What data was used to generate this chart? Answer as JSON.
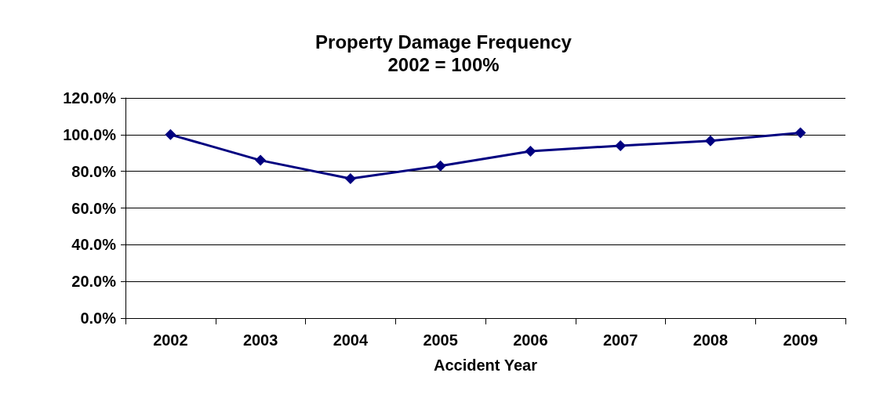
{
  "chart_data": {
    "type": "line",
    "title": "Property Damage Frequency\n2002 = 100%",
    "xlabel": "Accident Year",
    "categories": [
      "2002",
      "2003",
      "2004",
      "2005",
      "2006",
      "2007",
      "2008",
      "2009"
    ],
    "series": [
      {
        "color": "#000080",
        "values": [
          100,
          86,
          76,
          83,
          91,
          94,
          96.6,
          101
        ]
      }
    ],
    "ylim": [
      0,
      120
    ],
    "yticks": [
      {
        "value": 0,
        "label": "0.0%"
      },
      {
        "value": 20,
        "label": "20.0%"
      },
      {
        "value": 40,
        "label": "40.0%"
      },
      {
        "value": 60,
        "label": "60.0%"
      },
      {
        "value": 80,
        "label": "80.0%"
      },
      {
        "value": 100,
        "label": "100.0%"
      },
      {
        "value": 120,
        "label": "120.0%"
      }
    ],
    "grid": "y",
    "marker": "diamond",
    "line_style": "solid"
  }
}
